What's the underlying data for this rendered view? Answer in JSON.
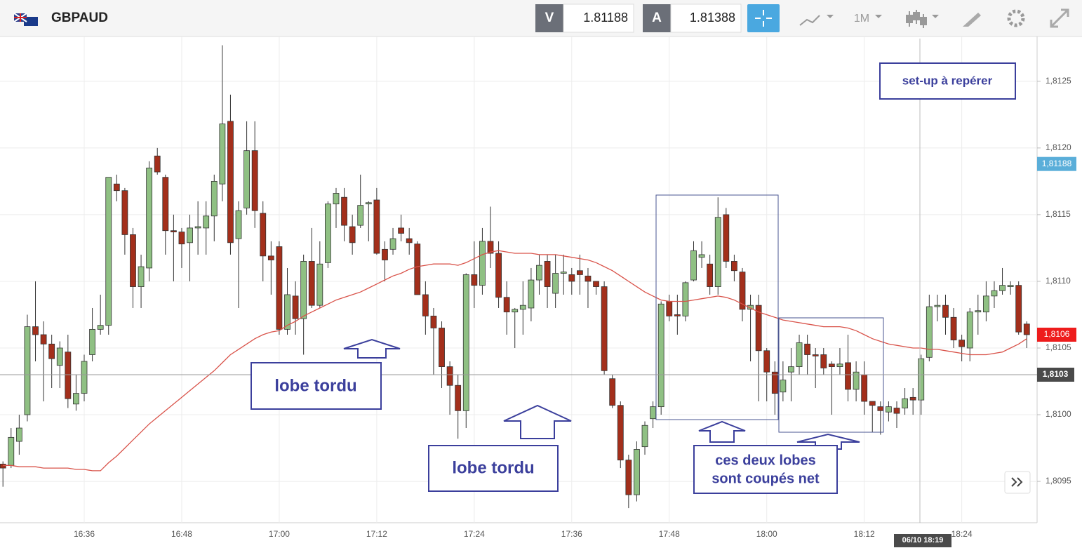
{
  "header": {
    "symbol": "GBPAUD",
    "bid_label": "V",
    "bid": "1.81188",
    "ask_label": "A",
    "ask": "1.81388",
    "timeframe": "1M"
  },
  "chart_data": {
    "type": "candlestick",
    "up_color": "#8fc083",
    "down_color": "#a32f1b",
    "ma_color": "#d9534a",
    "ylim": [
      1.80919,
      1.81282
    ],
    "yticks": [
      {
        "value": 1.8095,
        "label": "1,8095"
      },
      {
        "value": 1.81,
        "label": "1,8100"
      },
      {
        "value": 1.8105,
        "label": "1,8105"
      },
      {
        "value": 1.811,
        "label": "1,8110"
      },
      {
        "value": 1.8115,
        "label": "1,8115"
      },
      {
        "value": 1.812,
        "label": "1,8120"
      },
      {
        "value": 1.8125,
        "label": "1,8125"
      }
    ],
    "grid": true,
    "categories": [
      null,
      null,
      null,
      null,
      null,
      null,
      null,
      null,
      null,
      null,
      "16:36",
      null,
      null,
      null,
      null,
      null,
      null,
      null,
      null,
      null,
      null,
      null,
      "16:48",
      null,
      null,
      null,
      null,
      null,
      null,
      null,
      null,
      null,
      null,
      null,
      "17:00",
      null,
      null,
      null,
      null,
      null,
      null,
      null,
      null,
      null,
      null,
      null,
      "17:12",
      null,
      null,
      null,
      null,
      null,
      null,
      null,
      null,
      null,
      null,
      null,
      "17:24",
      null,
      null,
      null,
      null,
      null,
      null,
      null,
      null,
      null,
      null,
      null,
      "17:36",
      null,
      null,
      null,
      null,
      null,
      null,
      null,
      null,
      null,
      null,
      null,
      "17:48",
      null,
      null,
      null,
      null,
      null,
      null,
      null,
      null,
      null,
      null,
      null,
      "18:00",
      null,
      null,
      null,
      null,
      null,
      null,
      null,
      null,
      null,
      null,
      null,
      "18:12",
      null,
      null,
      null,
      null,
      null,
      null,
      null,
      null,
      null,
      null,
      null,
      "18:24",
      null,
      null,
      null,
      null,
      null,
      null,
      null,
      null
    ],
    "open": [
      1.80963,
      1.80962,
      1.8098,
      1.81,
      1.81066,
      1.8106,
      1.81053,
      1.81037,
      1.81047,
      1.81008,
      1.81016,
      1.81045,
      1.81064,
      1.81067,
      1.81173,
      1.81168,
      1.81135,
      1.81096,
      1.8111,
      1.81194,
      1.81178,
      1.81138,
      1.81137,
      1.81129,
      1.8114,
      1.8114,
      1.81149,
      1.81173,
      1.8122,
      1.81132,
      1.81155,
      1.81198,
      1.81151,
      1.81119,
      1.81126,
      1.81064,
      1.81089,
      1.81072,
      1.81115,
      1.81082,
      1.81114,
      1.81158,
      1.81163,
      1.81141,
      1.81142,
      1.81158,
      1.81161,
      1.81124,
      1.81124,
      1.8114,
      1.81132,
      1.81128,
      1.8109,
      1.81074,
      1.81065,
      1.81036,
      1.81022,
      1.81003,
      1.81105,
      1.81097,
      1.8113,
      1.81121,
      1.81088,
      1.81077,
      1.81079,
      1.8108,
      1.81101,
      1.81115,
      1.81091,
      1.81106,
      1.81105,
      1.81108,
      1.81104,
      1.811,
      1.81096,
      1.81027,
      1.81007,
      1.80966,
      1.8094,
      1.80976,
      1.80997,
      1.81006,
      1.81085,
      1.81075,
      1.81074,
      1.81101,
      1.81118,
      1.81113,
      1.81096,
      1.8115,
      1.81115,
      1.81107,
      1.81079,
      1.81082,
      1.81048,
      1.81032,
      1.81017,
      1.81032,
      1.81036,
      1.81053,
      1.81045,
      1.81045,
      1.81038,
      1.81036,
      1.81039,
      1.81019,
      1.8103,
      1.8101,
      1.81006,
      1.81002,
      1.81005,
      1.81005,
      1.81013,
      1.81011,
      1.81043,
      1.81081,
      1.81082,
      1.81073,
      1.81056,
      1.8105,
      1.81077,
      1.81077,
      1.81089,
      1.81093,
      1.81096,
      1.81097,
      1.81068
    ],
    "high": [
      1.80965,
      1.8099,
      1.81,
      1.81075,
      1.811,
      1.8107,
      1.8106,
      1.81055,
      1.8106,
      1.8103,
      1.81045,
      1.8108,
      1.8109,
      1.81178,
      1.8118,
      1.8117,
      1.8114,
      1.8112,
      1.8119,
      1.812,
      1.8118,
      1.8115,
      1.8114,
      1.8115,
      1.8116,
      1.8116,
      1.8118,
      1.81277,
      1.8124,
      1.8116,
      1.8122,
      1.8122,
      1.8116,
      1.8113,
      1.8113,
      1.8111,
      1.811,
      1.8112,
      1.8114,
      1.8113,
      1.8116,
      1.8117,
      1.8117,
      1.8115,
      1.8118,
      1.8116,
      1.8117,
      1.8113,
      1.8114,
      1.8115,
      1.8114,
      1.8113,
      1.811,
      1.8108,
      1.8107,
      1.8104,
      1.8103,
      1.81106,
      1.8113,
      1.8114,
      1.81156,
      1.8113,
      1.811,
      1.8108,
      1.811,
      1.8111,
      1.8112,
      1.8112,
      1.8112,
      1.8112,
      1.8111,
      1.8112,
      1.8111,
      1.811,
      1.811,
      1.8103,
      1.8101,
      1.8097,
      1.8098,
      1.80995,
      1.8101,
      1.81085,
      1.8109,
      1.8109,
      1.811,
      1.8113,
      1.8113,
      1.8112,
      1.81163,
      1.81155,
      1.8112,
      1.8111,
      1.8109,
      1.8109,
      1.8105,
      1.8104,
      1.8104,
      1.8105,
      1.8106,
      1.8106,
      1.8105,
      1.8105,
      1.8104,
      1.8105,
      1.8106,
      1.8104,
      1.8104,
      1.8101,
      1.8101,
      1.8101,
      1.8101,
      1.8102,
      1.8102,
      1.81045,
      1.8109,
      1.8109,
      1.8109,
      1.8108,
      1.8106,
      1.8108,
      1.8109,
      1.811,
      1.811,
      1.8111,
      1.811,
      1.811,
      1.8107
    ],
    "low": [
      1.80946,
      1.8096,
      1.8097,
      1.80995,
      1.8104,
      1.8101,
      1.8102,
      1.8102,
      1.81005,
      1.81003,
      1.8101,
      1.8104,
      1.8106,
      1.8106,
      1.8116,
      1.8112,
      1.8108,
      1.8108,
      1.811,
      1.8118,
      1.8112,
      1.811,
      1.8111,
      1.811,
      1.8112,
      1.8112,
      1.8113,
      1.8116,
      1.8112,
      1.8108,
      1.8115,
      1.8114,
      1.811,
      1.8109,
      1.8106,
      1.8106,
      1.8106,
      1.81045,
      1.8108,
      1.8108,
      1.8111,
      1.8114,
      1.8113,
      1.8112,
      1.8114,
      1.8113,
      1.8112,
      1.811,
      1.8112,
      1.8113,
      1.8112,
      1.8109,
      1.8106,
      1.8103,
      1.8102,
      1.81,
      1.80982,
      1.8099,
      1.8108,
      1.8109,
      1.8111,
      1.8108,
      1.8106,
      1.8105,
      1.8106,
      1.8107,
      1.8109,
      1.8108,
      1.8108,
      1.8109,
      1.8109,
      1.8109,
      1.8108,
      1.8109,
      1.8103,
      1.81005,
      1.8096,
      1.8093,
      1.80935,
      1.8097,
      1.8099,
      1.81,
      1.8107,
      1.8106,
      1.8107,
      1.811,
      1.8111,
      1.8109,
      1.8109,
      1.8111,
      1.811,
      1.8107,
      1.8104,
      1.8101,
      1.8101,
      1.81,
      1.8101,
      1.8101,
      1.8103,
      1.8103,
      1.8102,
      1.8103,
      1.81,
      1.8103,
      1.8101,
      1.8101,
      1.81,
      1.80987,
      1.80985,
      1.80995,
      1.8099,
      1.81,
      1.81,
      1.81,
      1.8104,
      1.8107,
      1.8106,
      1.8105,
      1.8104,
      1.8104,
      1.8106,
      1.8107,
      1.8108,
      1.8109,
      1.8109,
      1.8106,
      1.8105
    ],
    "close": [
      1.8096,
      1.80983,
      1.8099,
      1.81066,
      1.8106,
      1.81053,
      1.81042,
      1.8105,
      1.81012,
      1.81016,
      1.8104,
      1.81064,
      1.81067,
      1.81178,
      1.81168,
      1.81135,
      1.81096,
      1.81111,
      1.81185,
      1.81182,
      1.81138,
      1.81137,
      1.81128,
      1.8114,
      1.81141,
      1.81149,
      1.81175,
      1.81218,
      1.81129,
      1.81153,
      1.81198,
      1.81153,
      1.81119,
      1.81116,
      1.81064,
      1.8109,
      1.81072,
      1.81115,
      1.81082,
      1.81113,
      1.81158,
      1.81166,
      1.81142,
      1.81129,
      1.81157,
      1.81159,
      1.81121,
      1.81116,
      1.81132,
      1.81136,
      1.81129,
      1.8109,
      1.81074,
      1.81065,
      1.81036,
      1.81022,
      1.81003,
      1.81105,
      1.81097,
      1.8113,
      1.81121,
      1.81088,
      1.81077,
      1.81079,
      1.81082,
      1.81101,
      1.81112,
      1.81096,
      1.81106,
      1.81107,
      1.811,
      1.81105,
      1.811,
      1.81096,
      1.81033,
      1.81007,
      1.80966,
      1.8094,
      1.80974,
      1.80992,
      1.81006,
      1.81083,
      1.81074,
      1.81074,
      1.81099,
      1.81123,
      1.8112,
      1.81096,
      1.81148,
      1.81115,
      1.81108,
      1.81079,
      1.81082,
      1.81048,
      1.81032,
      1.81016,
      1.81026,
      1.81036,
      1.81054,
      1.81045,
      1.81044,
      1.81035,
      1.81036,
      1.81038,
      1.81019,
      1.81032,
      1.8101,
      1.81007,
      1.81003,
      1.81006,
      1.81001,
      1.81012,
      1.81011,
      1.81042,
      1.81081,
      1.81082,
      1.81073,
      1.81056,
      1.81051,
      1.81077,
      1.81078,
      1.81089,
      1.81093,
      1.81097,
      1.81097,
      1.81062,
      1.8106
    ],
    "ma": [
      1.80962,
      1.80962,
      1.80961,
      1.80961,
      1.80961,
      1.8096,
      1.8096,
      1.8096,
      1.8096,
      1.80959,
      1.80959,
      1.80958,
      1.80958,
      1.80964,
      1.80969,
      1.80975,
      1.80981,
      1.80987,
      1.80993,
      1.80998,
      1.81003,
      1.81008,
      1.81013,
      1.81018,
      1.81023,
      1.81028,
      1.81033,
      1.81039,
      1.81045,
      1.81049,
      1.81053,
      1.81057,
      1.8106,
      1.81062,
      1.81063,
      1.81067,
      1.8107,
      1.81074,
      1.81077,
      1.8108,
      1.81083,
      1.81086,
      1.81088,
      1.8109,
      1.81092,
      1.81095,
      1.81098,
      1.81101,
      1.81104,
      1.81106,
      1.81109,
      1.81111,
      1.81112,
      1.81113,
      1.81113,
      1.81113,
      1.81112,
      1.81114,
      1.81117,
      1.8112,
      1.81122,
      1.81123,
      1.81122,
      1.81121,
      1.81121,
      1.81121,
      1.8112,
      1.8112,
      1.8112,
      1.81119,
      1.81118,
      1.81117,
      1.81116,
      1.81114,
      1.81111,
      1.81108,
      1.81104,
      1.811,
      1.81096,
      1.81092,
      1.81089,
      1.81086,
      1.81085,
      1.81085,
      1.81085,
      1.81086,
      1.81087,
      1.81088,
      1.81089,
      1.81088,
      1.81086,
      1.81083,
      1.8108,
      1.81077,
      1.81075,
      1.81073,
      1.81071,
      1.8107,
      1.81069,
      1.81068,
      1.81067,
      1.81066,
      1.81066,
      1.81066,
      1.81065,
      1.81063,
      1.8106,
      1.81057,
      1.81055,
      1.81053,
      1.81052,
      1.81051,
      1.8105,
      1.8105,
      1.81049,
      1.81049,
      1.81048,
      1.81047,
      1.81046,
      1.81045,
      1.81045,
      1.81045,
      1.81046,
      1.81047,
      1.8105,
      1.81053,
      1.81057
    ],
    "price_markers": [
      {
        "value": 1.81188,
        "label": "1,81188",
        "color": "#5aaed9"
      },
      {
        "value": 1.8106,
        "label": "1,8106",
        "color": "#ee1c1c"
      }
    ],
    "crosshair": {
      "value": 1.8103,
      "label": "1,8103",
      "time_label": "06/10 18:19"
    },
    "annotations": [
      {
        "lines": [
          "lobe tordu"
        ]
      },
      {
        "lines": [
          "lobe tordu"
        ]
      },
      {
        "lines": [
          "ces deux lobes",
          "sont coupés net"
        ]
      },
      {
        "lines": [
          "set-up à repérer"
        ]
      }
    ]
  }
}
